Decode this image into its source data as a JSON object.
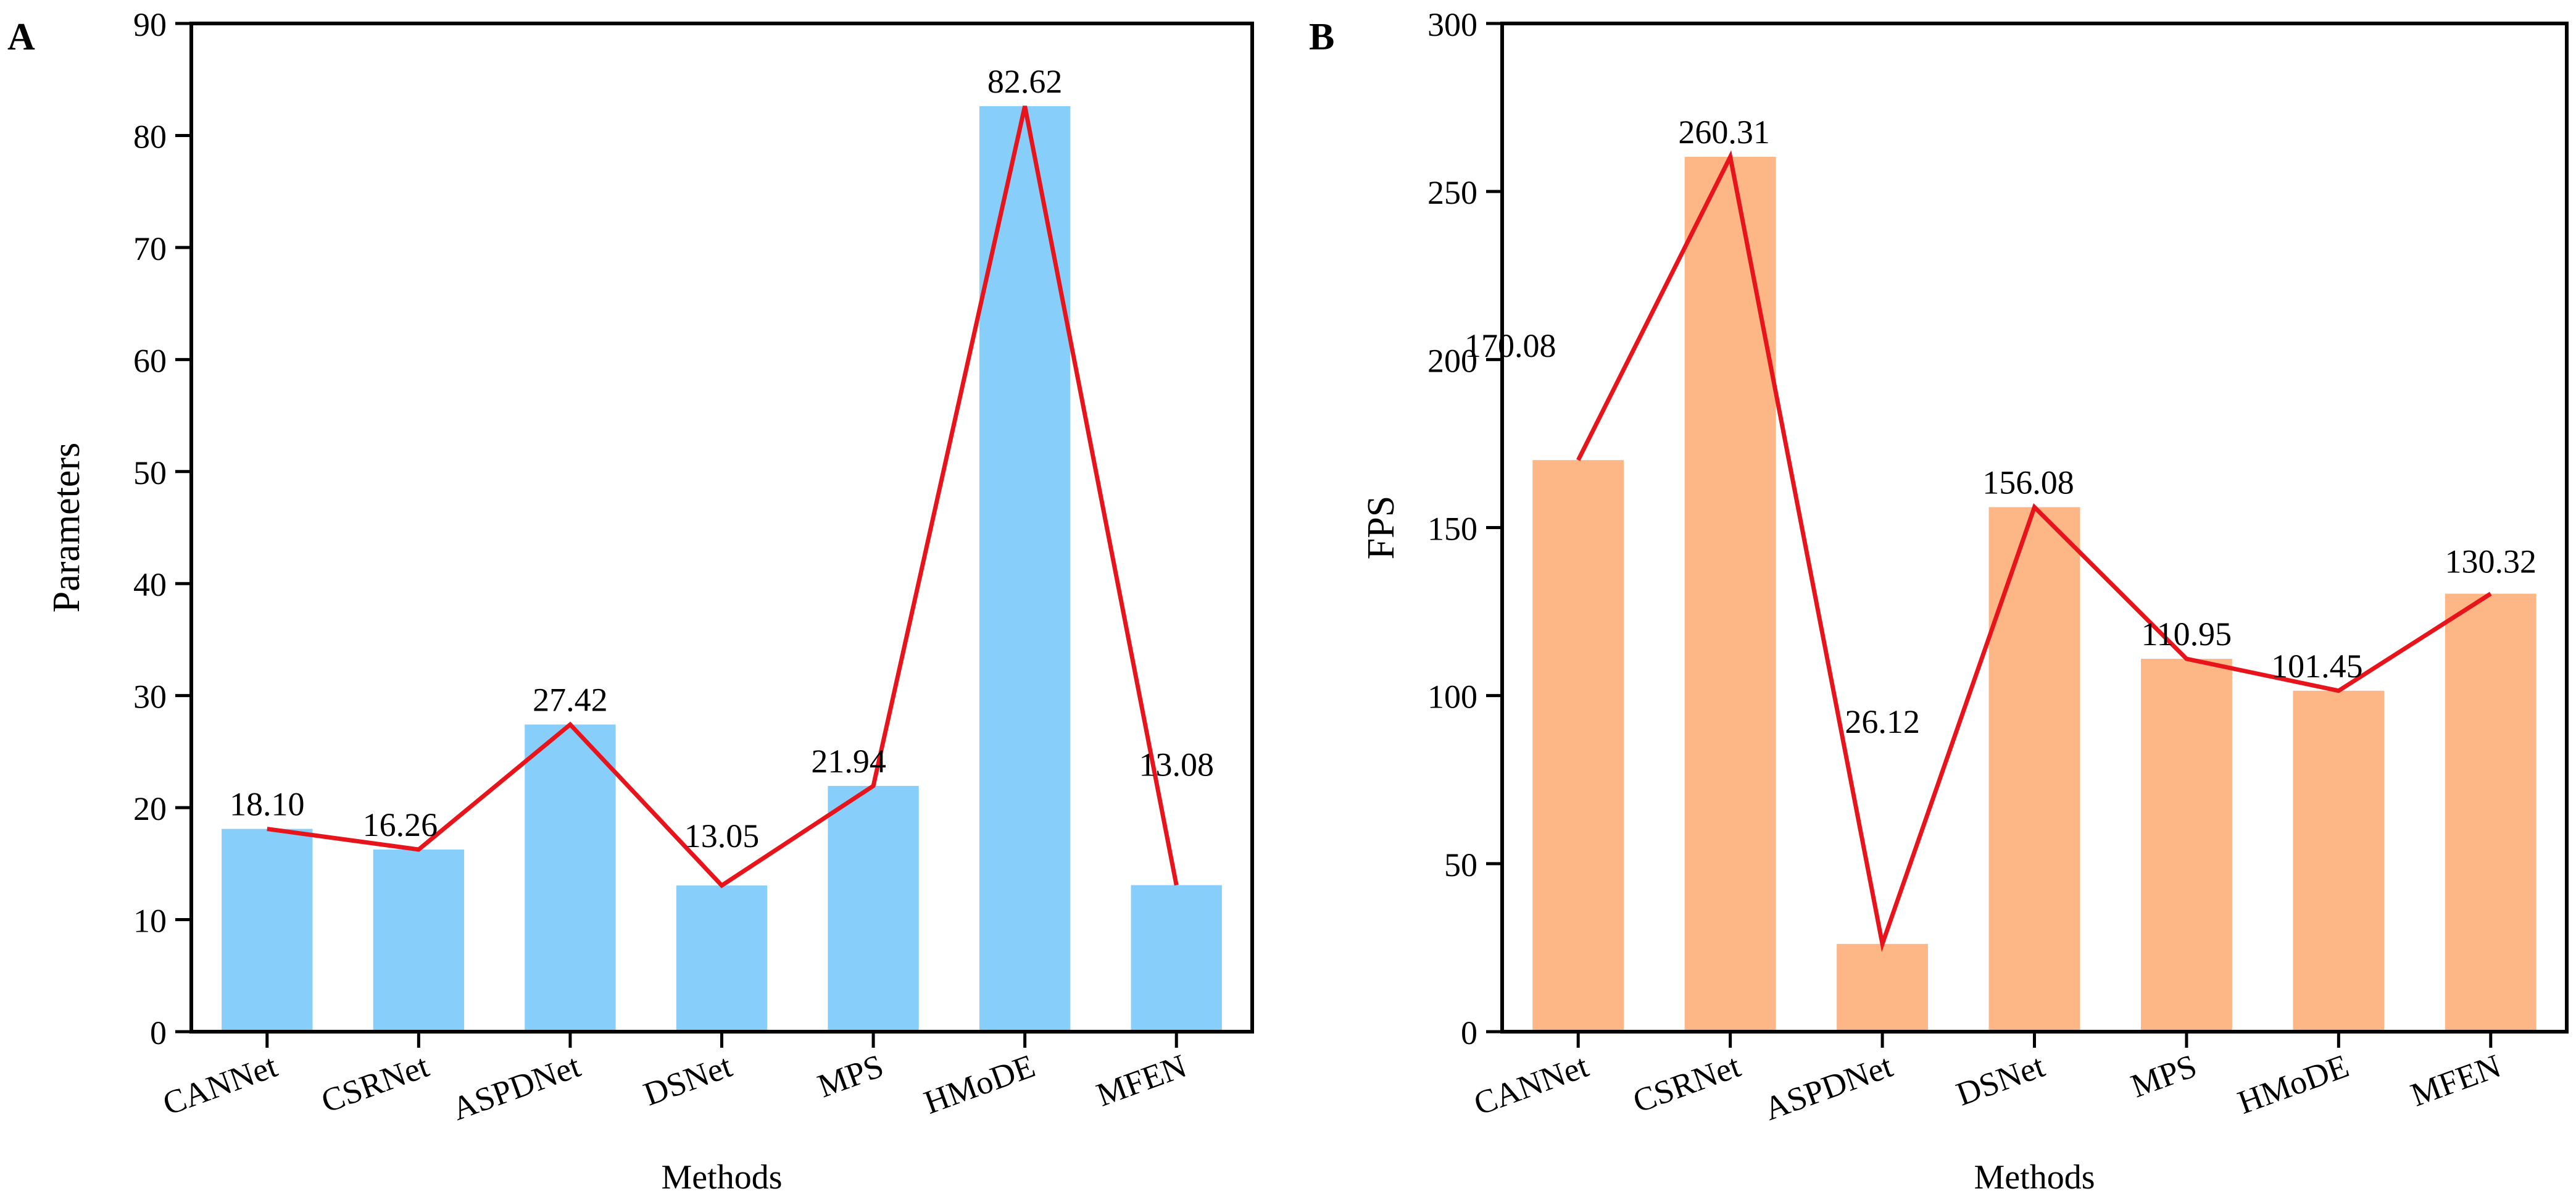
{
  "chart_data": [
    {
      "panel_label": "A",
      "type": "bar",
      "categories": [
        "CANNet",
        "CSRNet",
        "ASPDNet",
        "DSNet",
        "MPS",
        "HMoDE",
        "MFEN"
      ],
      "values": [
        18.1,
        16.26,
        27.42,
        13.05,
        21.94,
        82.62,
        13.08
      ],
      "value_labels": [
        "18.10",
        "16.26",
        "27.42",
        "13.05",
        "21.94",
        "82.62",
        "13.08"
      ],
      "overlay_line": true,
      "xlabel": "Methods",
      "ylabel": "Parameters",
      "ylim": [
        0,
        90
      ],
      "yticks": [
        0,
        10,
        20,
        30,
        40,
        50,
        60,
        70,
        80,
        90
      ],
      "bar_color": "#87cefa",
      "line_color": "#e8141c",
      "grid": false,
      "legend": "none"
    },
    {
      "panel_label": "B",
      "type": "bar",
      "categories": [
        "CANNet",
        "CSRNet",
        "ASPDNet",
        "DSNet",
        "MPS",
        "HMoDE",
        "MFEN"
      ],
      "values": [
        170.08,
        260.31,
        26.12,
        156.08,
        110.95,
        101.45,
        130.32
      ],
      "value_labels": [
        "170.08",
        "260.31",
        "26.12",
        "156.08",
        "110.95",
        "101.45",
        "130.32"
      ],
      "overlay_line": true,
      "xlabel": "Methods",
      "ylabel": "FPS",
      "ylim": [
        0,
        300
      ],
      "yticks": [
        0,
        50,
        100,
        150,
        200,
        250,
        300
      ],
      "bar_color": "#fdb685",
      "line_color": "#e8141c",
      "grid": false,
      "legend": "none"
    }
  ]
}
